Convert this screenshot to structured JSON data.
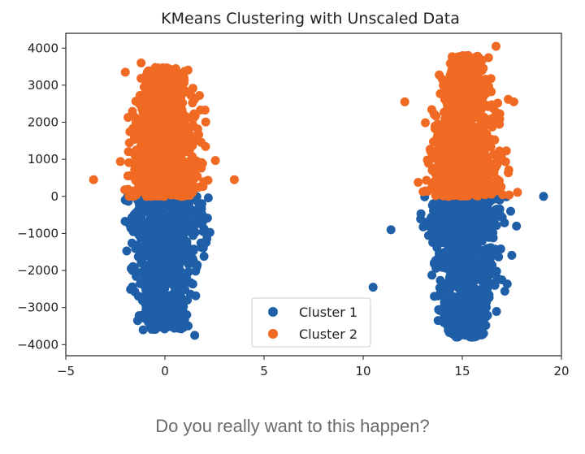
{
  "caption": "Do you really want to this happen?",
  "chart_data": {
    "type": "scatter",
    "title": "KMeans Clustering with Unscaled Data",
    "xlabel": "",
    "ylabel": "",
    "xlim": [
      -5,
      20
    ],
    "ylim": [
      -4300,
      4400
    ],
    "x_ticks": [
      -5,
      0,
      5,
      10,
      15,
      20
    ],
    "y_ticks": [
      4000,
      3000,
      2000,
      1000,
      0,
      -1000,
      -2000,
      -3000,
      -4000
    ],
    "grid": false,
    "legend_position": "lower center",
    "series": [
      {
        "name": "Cluster 1",
        "color": "#1f5fa8",
        "groups": [
          {
            "x_center": 0.0,
            "x_spread": 1.6,
            "y_min": -3600,
            "y_max": 0
          },
          {
            "x_center": 15.2,
            "x_spread": 1.6,
            "y_min": -3800,
            "y_max": 0
          }
        ],
        "outliers": [
          [
            1.5,
            -3750
          ],
          [
            -1.1,
            -3600
          ],
          [
            15.5,
            -3800
          ],
          [
            10.5,
            -2450
          ],
          [
            19.1,
            0
          ],
          [
            11.4,
            -900
          ]
        ]
      },
      {
        "name": "Cluster 2",
        "color": "#f06a24",
        "groups": [
          {
            "x_center": 0.0,
            "x_spread": 1.6,
            "y_min": 0,
            "y_max": 3500
          },
          {
            "x_center": 15.2,
            "x_spread": 1.6,
            "y_min": 0,
            "y_max": 3800
          }
        ],
        "outliers": [
          [
            -1.2,
            3600
          ],
          [
            -2.0,
            3350
          ],
          [
            16.7,
            4050
          ],
          [
            15.3,
            3800
          ],
          [
            12.1,
            2550
          ],
          [
            -3.6,
            450
          ],
          [
            3.5,
            450
          ],
          [
            17.6,
            2550
          ]
        ]
      }
    ]
  }
}
